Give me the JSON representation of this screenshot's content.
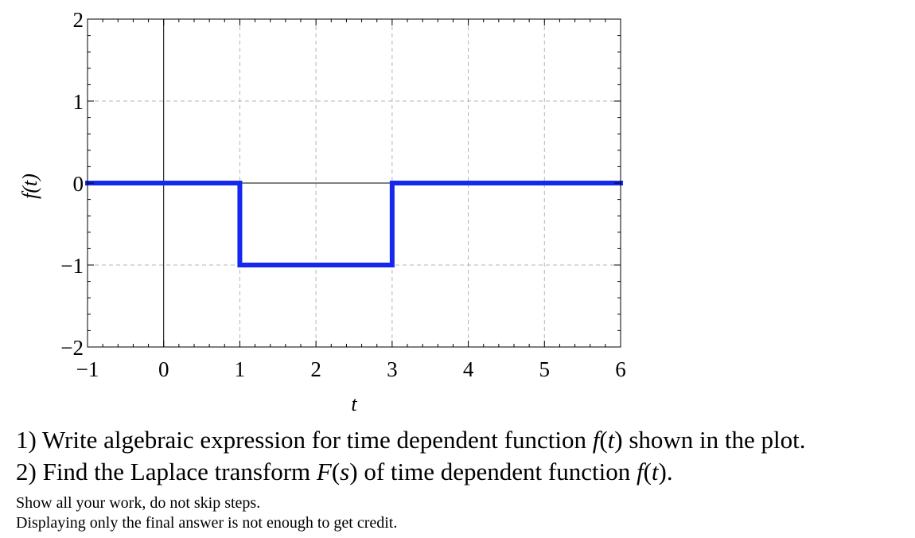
{
  "chart_data": {
    "type": "line",
    "title": "",
    "xlabel": "t",
    "ylabel": "f(t)",
    "xlim": [
      -1,
      6
    ],
    "ylim": [
      -2,
      2
    ],
    "x_ticks": [
      -1,
      0,
      1,
      2,
      3,
      4,
      5,
      6
    ],
    "x_tick_labels": [
      "−1",
      "0",
      "1",
      "2",
      "3",
      "4",
      "5",
      "6"
    ],
    "y_ticks": [
      -2,
      -1,
      0,
      1,
      2
    ],
    "y_tick_labels": [
      "−2",
      "−1",
      "0",
      "1",
      "2"
    ],
    "grid": true,
    "grid_style": "dashed",
    "series": [
      {
        "color": "#1428f0",
        "x": [
          -1,
          1,
          1,
          3,
          3,
          6
        ],
        "y": [
          0,
          0,
          -1,
          -1,
          0,
          0
        ]
      }
    ]
  },
  "questions": {
    "q1": {
      "prefix": "1) Write algebraic expression for time dependent function ",
      "f": "f",
      "open": "(",
      "t": "t",
      "close": ")",
      "suffix": " shown in the plot."
    },
    "q2": {
      "prefix": "2) Find the Laplace transform ",
      "F": "F",
      "open1": "(",
      "s": "s",
      "close1": ")",
      "middle": " of time dependent function ",
      "f": "f",
      "open2": "(",
      "t": "t",
      "close2": ")."
    }
  },
  "notes": {
    "line1": "Show all your work, do not skip steps.",
    "line2": "Displaying only the final answer is not enough to get credit."
  }
}
